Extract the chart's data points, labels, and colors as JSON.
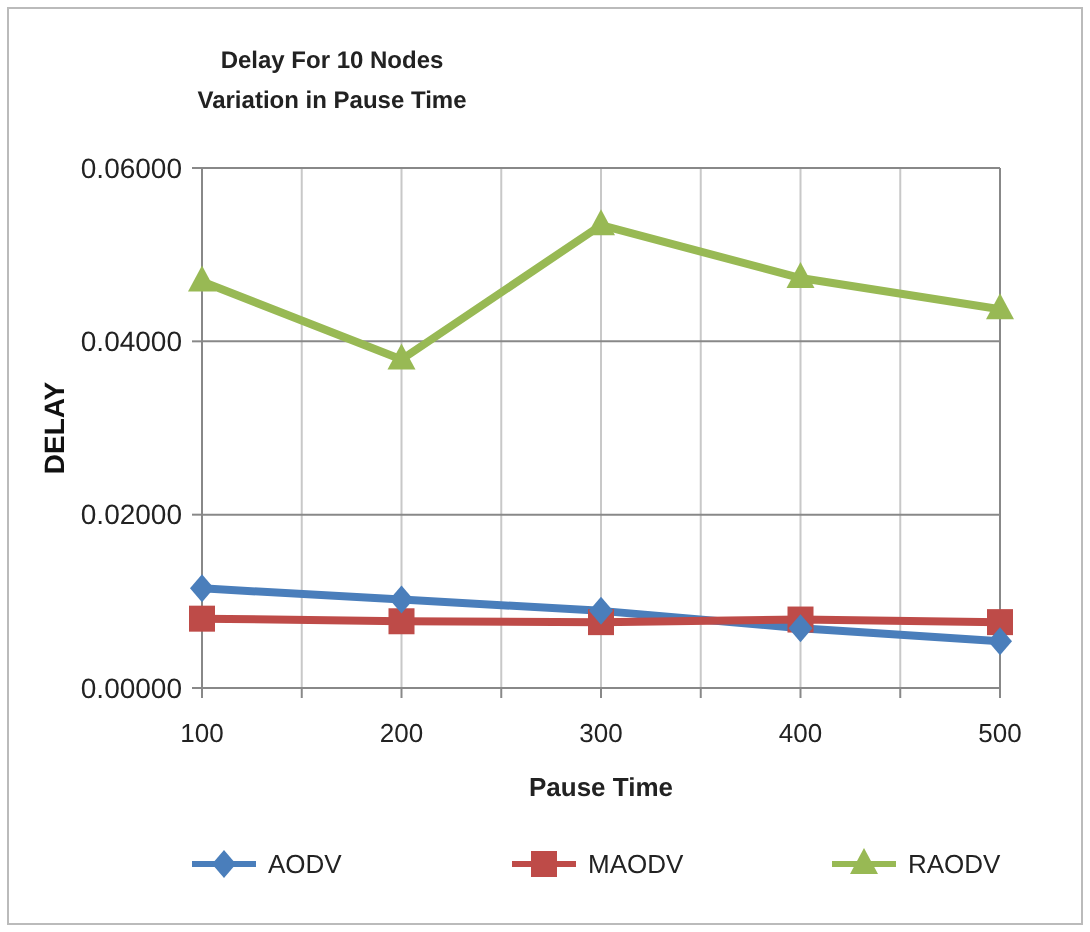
{
  "chart_data": {
    "type": "line",
    "title": "Delay For 10 Nodes",
    "subtitle": "Variation in Pause Time",
    "xlabel": "Pause Time",
    "ylabel": "DELAY",
    "x": [
      100,
      200,
      300,
      400,
      500
    ],
    "series": [
      {
        "name": "AODV",
        "color": "#4a7ebb",
        "marker": "diamond",
        "values": [
          0.0115,
          0.0102,
          0.0089,
          0.0069,
          0.0054
        ]
      },
      {
        "name": "MAODV",
        "color": "#be4b48",
        "marker": "square",
        "values": [
          0.008,
          0.0077,
          0.0076,
          0.0079,
          0.0076
        ]
      },
      {
        "name": "RAODV",
        "color": "#98b954",
        "marker": "triangle",
        "values": [
          0.0469,
          0.0379,
          0.0534,
          0.0473,
          0.0437
        ]
      }
    ],
    "xlim": [
      100,
      500
    ],
    "xticks": [
      100,
      {
        "value": 150,
        "label": null
      },
      200,
      {
        "value": 250,
        "label": null
      },
      300,
      {
        "value": 350,
        "label": null
      },
      400,
      {
        "value": 450,
        "label": null
      },
      500
    ],
    "ylim": [
      0,
      0.06
    ],
    "yticks": [
      {
        "value": 0,
        "label": "0.00000"
      },
      {
        "value": 0.02,
        "label": "0.02000"
      },
      {
        "value": 0.04,
        "label": "0.04000"
      },
      {
        "value": 0.06,
        "label": "0.06000"
      }
    ],
    "grid": true,
    "legend": "bottom"
  }
}
